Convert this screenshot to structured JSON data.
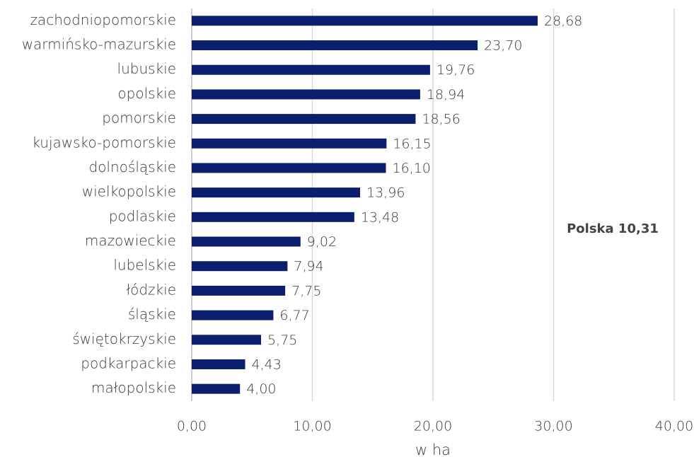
{
  "chart_data": {
    "type": "bar",
    "orientation": "horizontal",
    "categories": [
      "zachodniopomorskie",
      "warmińsko-mazurskie",
      "lubuskie",
      "opolskie",
      "pomorskie",
      "kujawsko-pomorskie",
      "dolnośląskie",
      "wielkopolskie",
      "podlaskie",
      "mazowieckie",
      "lubelskie",
      "łódzkie",
      "śląskie",
      "świętokrzyskie",
      "podkarpackie",
      "małopolskie"
    ],
    "values": [
      28.68,
      23.7,
      19.76,
      18.94,
      18.56,
      16.15,
      16.1,
      13.96,
      13.48,
      9.02,
      7.94,
      7.75,
      6.77,
      5.75,
      4.43,
      4.0
    ],
    "value_labels": [
      "28,68",
      "23,70",
      "19,76",
      "18,94",
      "18,56",
      "16,15",
      "16,10",
      "13,96",
      "13,48",
      "9,02",
      "7,94",
      "7,75",
      "6,77",
      "5,75",
      "4,43",
      "4,00"
    ],
    "color": "#0c1f6e",
    "xlim": [
      0,
      40
    ],
    "xticks": [
      {
        "value": 0,
        "label": "0,00"
      },
      {
        "value": 10,
        "label": "10,00"
      },
      {
        "value": 20,
        "label": "20,00"
      },
      {
        "value": 30,
        "label": "30,00"
      },
      {
        "value": 40,
        "label": "40,00"
      }
    ],
    "x_label": "w ha",
    "annotation": "Polska 10,31",
    "grid": true
  }
}
